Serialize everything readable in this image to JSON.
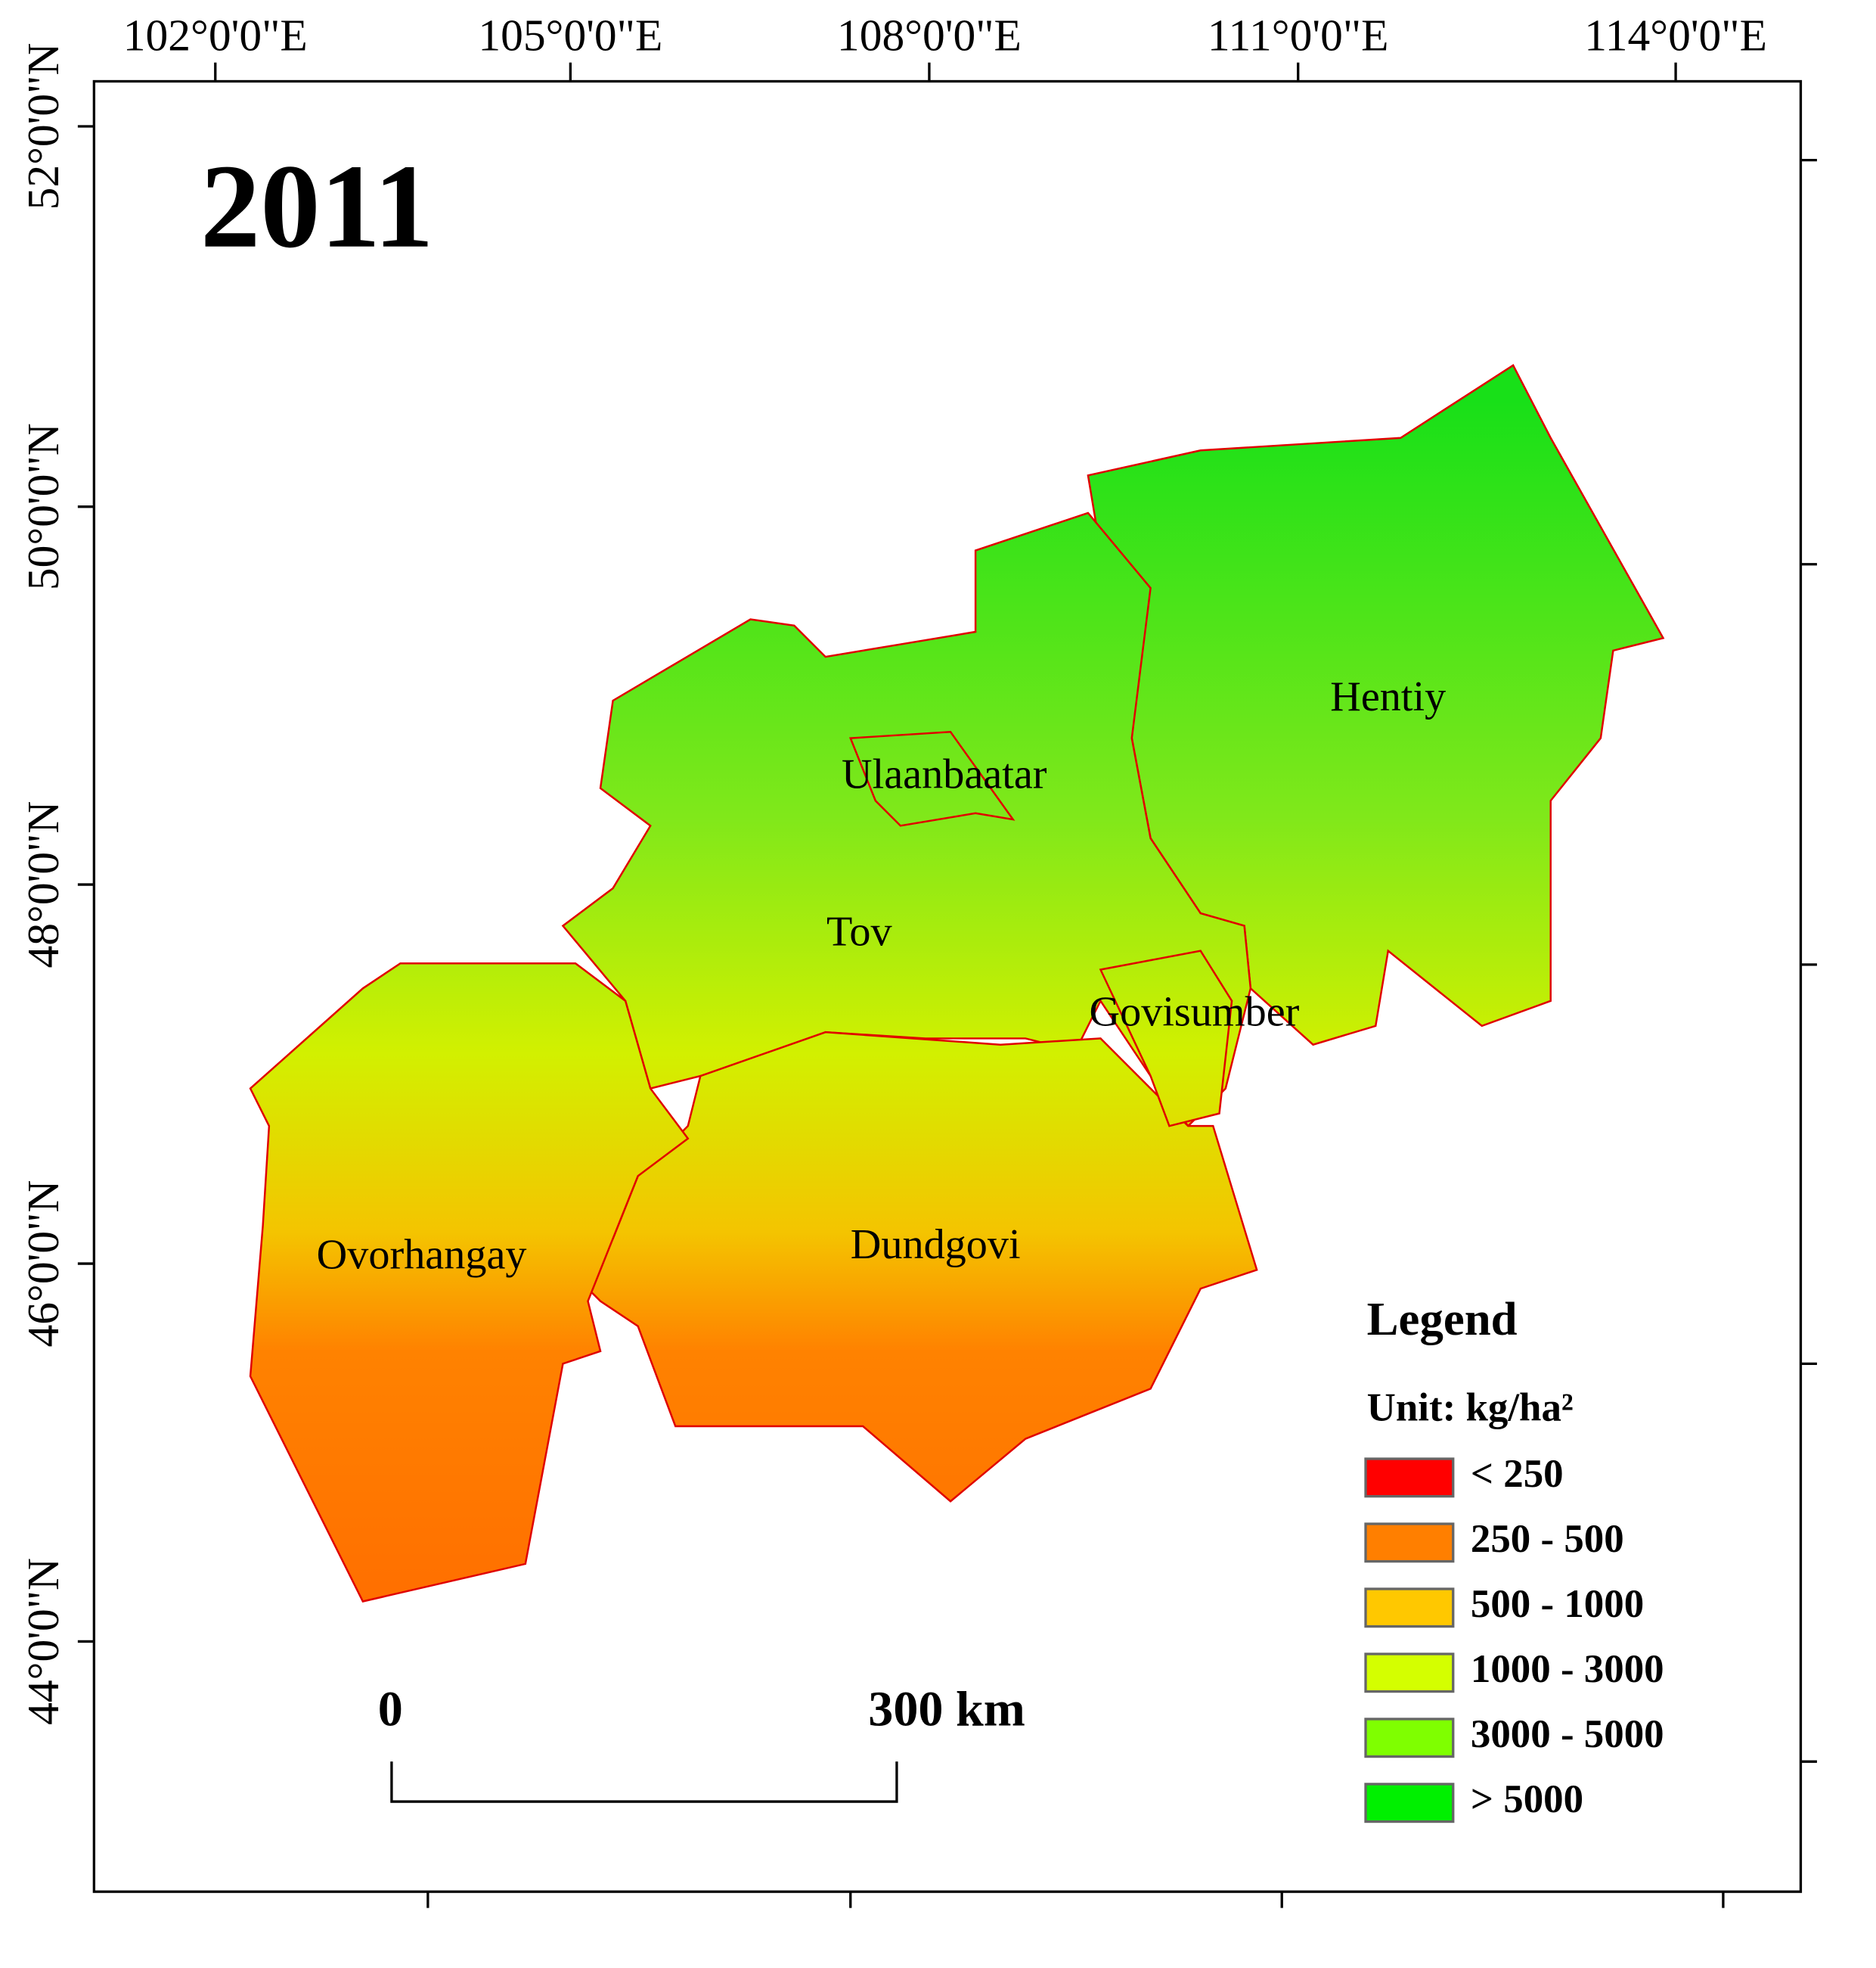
{
  "title": "2011",
  "lon_labels": [
    "102°0'0\"E",
    "105°0'0\"E",
    "108°0'0\"E",
    "111°0'0\"E",
    "114°0'0\"E"
  ],
  "lat_labels": [
    "52°0'0\"N",
    "50°0'0\"N",
    "48°0'0\"N",
    "46°0'0\"N",
    "44°0'0\"N"
  ],
  "regions": [
    "Hentiy",
    "Ulaanbaatar",
    "Tov",
    "Govisumber",
    "Dundgovi",
    "Ovorhangay"
  ],
  "scale_bar": {
    "start": "0",
    "end": "300 km"
  },
  "legend": {
    "title": "Legend",
    "unit": "Unit: kg/ha²",
    "items": [
      {
        "label": "< 250",
        "color": "#ff0000"
      },
      {
        "label": "250 - 500",
        "color": "#ff7f00"
      },
      {
        "label": "500 - 1000",
        "color": "#ffc800"
      },
      {
        "label": "1000 - 3000",
        "color": "#d4ff00"
      },
      {
        "label": "3000 - 5000",
        "color": "#7fff00"
      },
      {
        "label": "> 5000",
        "color": "#00f000"
      }
    ]
  }
}
